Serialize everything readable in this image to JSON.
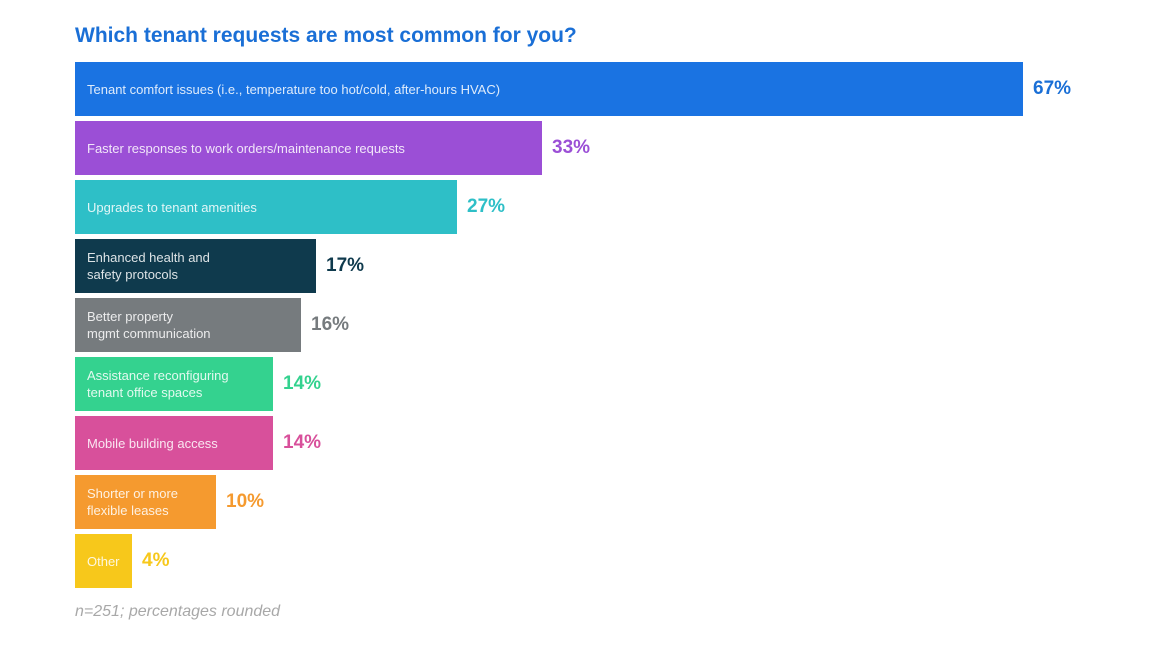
{
  "chart_data": {
    "type": "bar",
    "orientation": "horizontal",
    "title": "Which tenant requests are most common for you?",
    "categories": [
      "Tenant comfort issues (i.e., temperature too hot/cold, after-hours HVAC)",
      "Faster responses to work orders/maintenance requests",
      "Upgrades to tenant amenities",
      "Enhanced health and\nsafety protocols",
      "Better property\nmgmt communication",
      "Assistance reconfiguring\ntenant office spaces",
      "Mobile building access",
      "Shorter or more\nflexible leases",
      "Other"
    ],
    "values": [
      67,
      33,
      27,
      17,
      16,
      14,
      14,
      10,
      4
    ],
    "value_labels": [
      "67%",
      "33%",
      "27%",
      "17%",
      "16%",
      "14%",
      "14%",
      "10%",
      "4%"
    ],
    "colors": [
      "#1a73e2",
      "#9b4fd6",
      "#2ebfc7",
      "#0f3a4d",
      "#767b7e",
      "#34d28f",
      "#d8509b",
      "#f59a2f",
      "#f7c81b"
    ],
    "value_colors": [
      "#1a6fd6",
      "#9b4fd6",
      "#2ebfc7",
      "#0f3a4d",
      "#767b7e",
      "#34d28f",
      "#d8509b",
      "#f59a2f",
      "#f7c81b"
    ],
    "xlim": [
      0,
      67
    ],
    "unit": "%",
    "legend": "none",
    "grid": false,
    "footnote": "n=251; percentages rounded"
  }
}
